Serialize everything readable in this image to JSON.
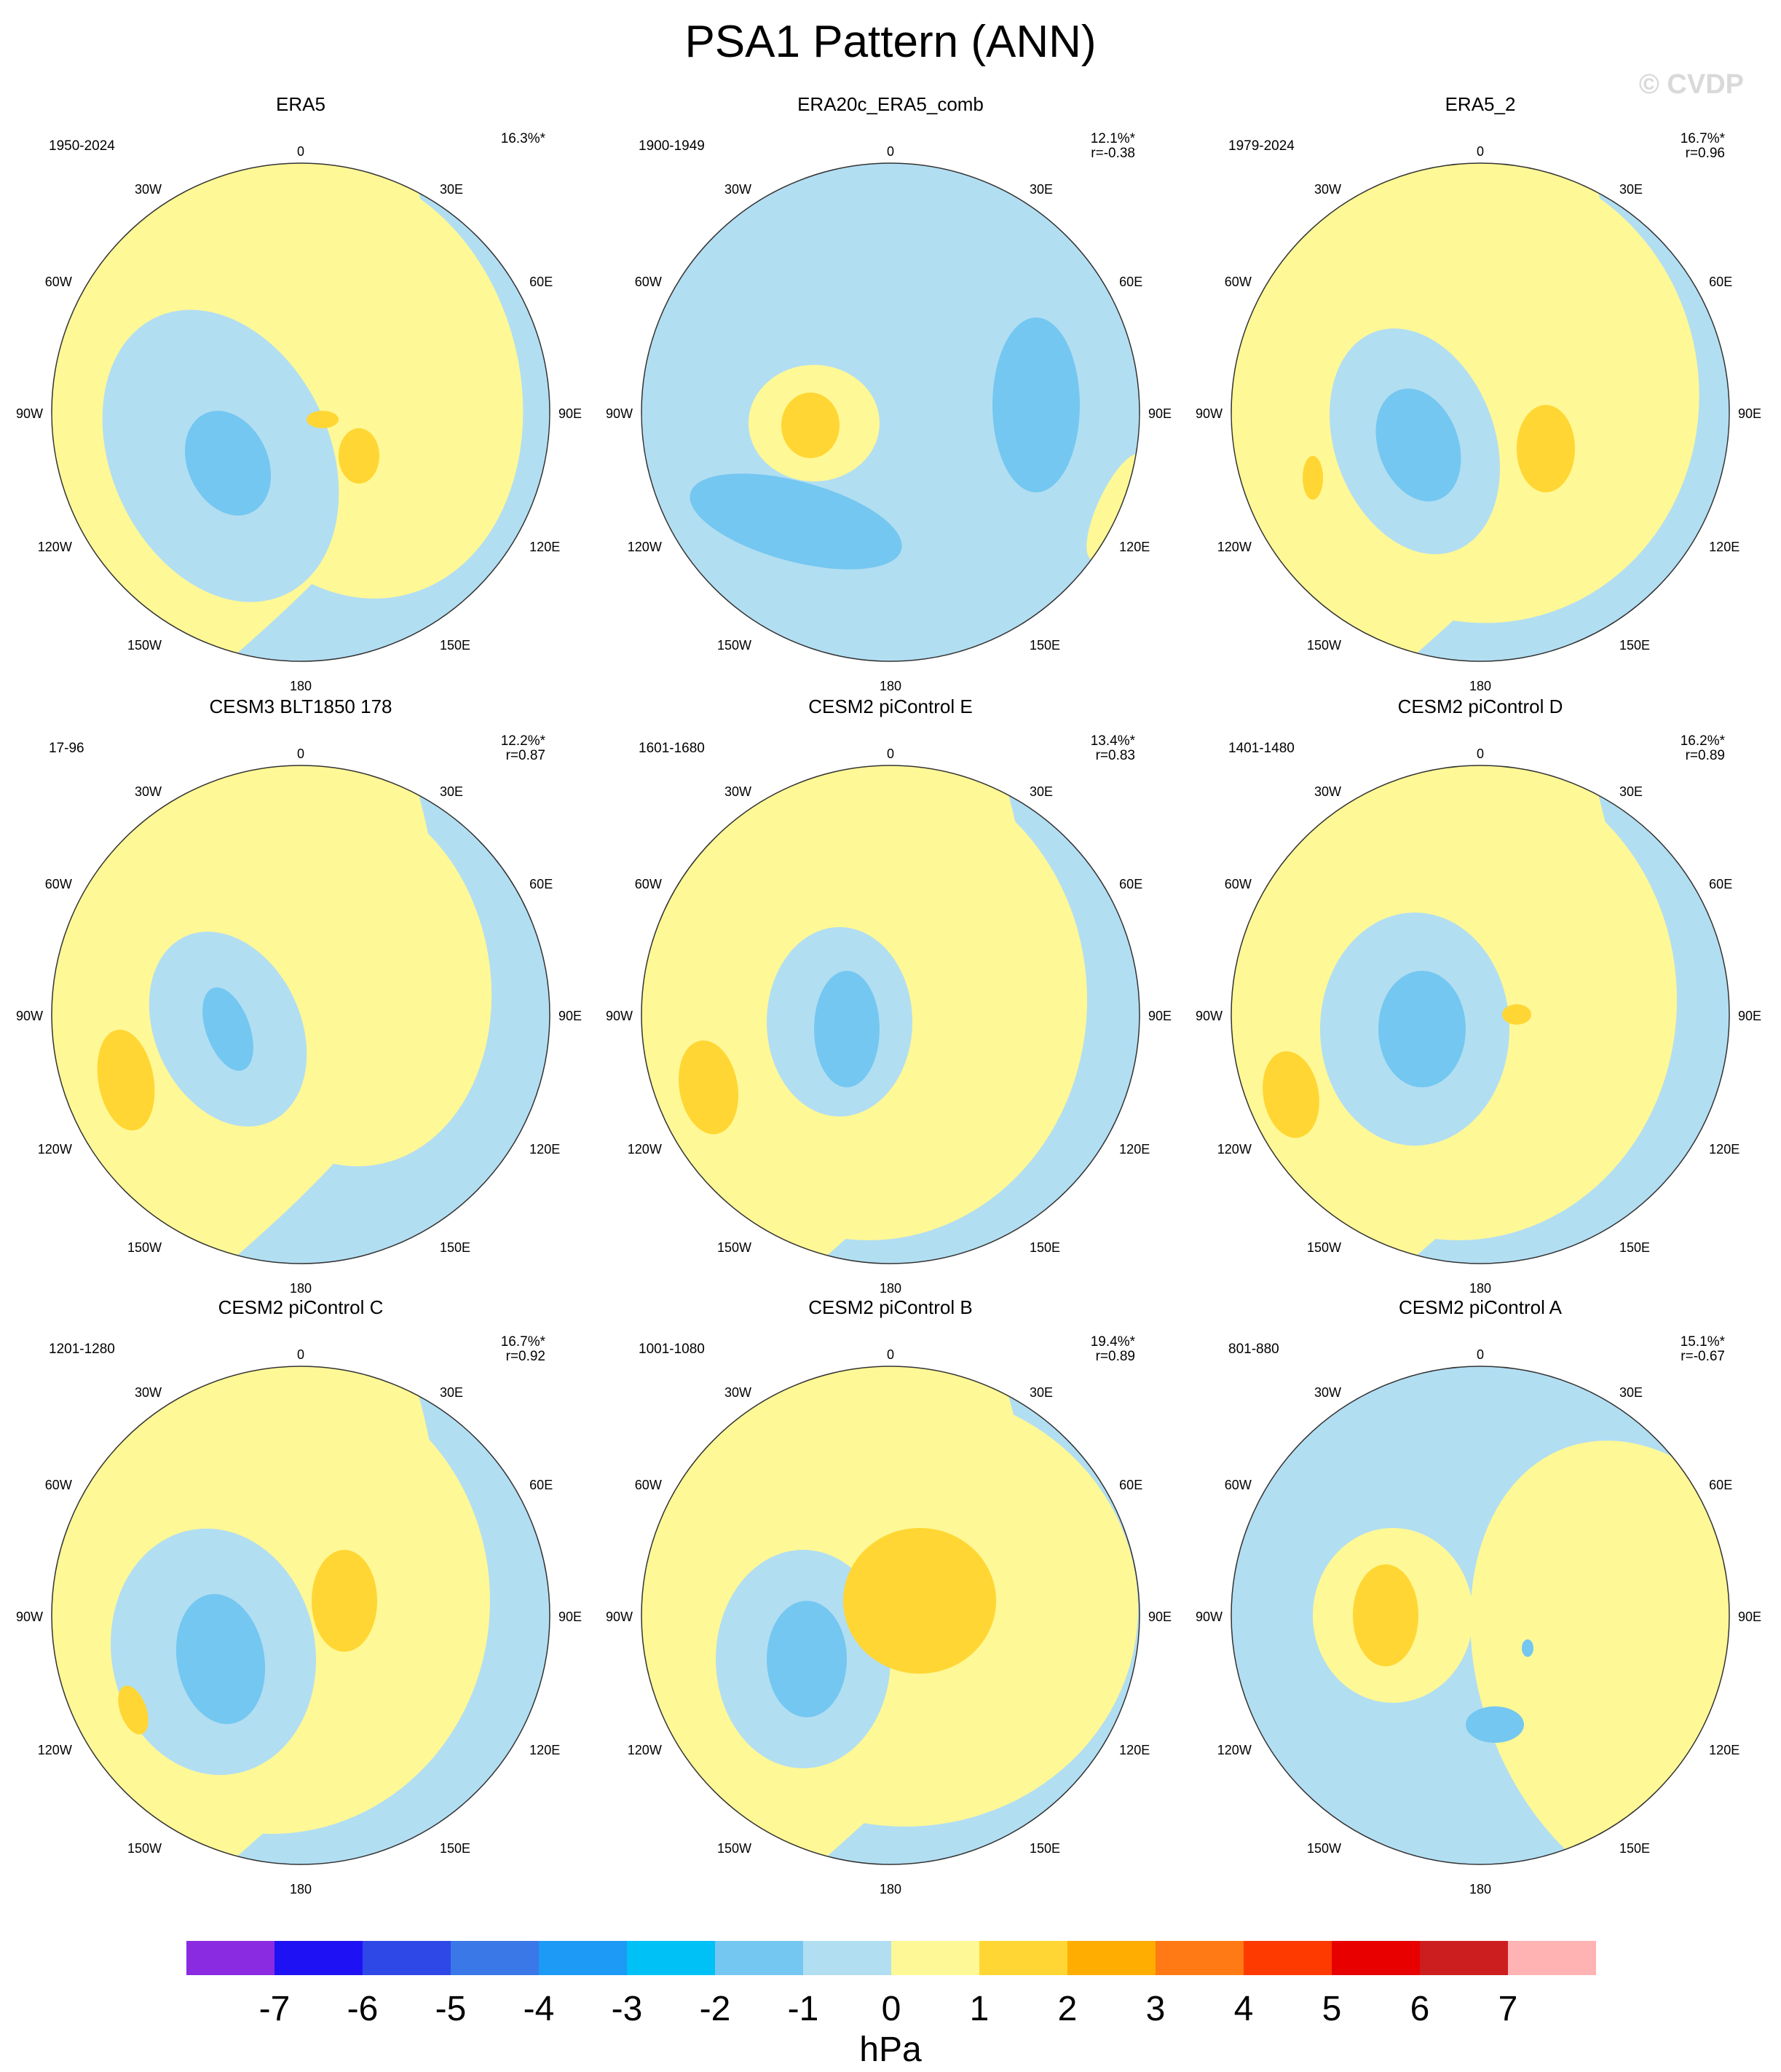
{
  "title": "PSA1 Pattern (ANN)",
  "watermark": "© CVDP",
  "colorbar": {
    "unit": "hPa",
    "tick_labels": [
      "-7",
      "-6",
      "-5",
      "-4",
      "-3",
      "-2",
      "-1",
      "0",
      "1",
      "2",
      "3",
      "4",
      "5",
      "6",
      "7"
    ],
    "colors": [
      "#8a2be2",
      "#1e12f5",
      "#2e48e8",
      "#3a78e8",
      "#1c9af5",
      "#00c1f5",
      "#74c7f0",
      "#b2def2",
      "#fff896",
      "#ffd633",
      "#ffad00",
      "#ff7a14",
      "#ff3a00",
      "#e80000",
      "#cc1e1e",
      "#ffb3b3"
    ]
  },
  "map_labels": {
    "top": "0",
    "tr1": "30E",
    "tr2": "60E",
    "right": "90E",
    "br2": "120E",
    "br1": "150E",
    "bottom": "180",
    "bl1": "150W",
    "bl2": "120W",
    "left": "90W",
    "tl2": "60W",
    "tl1": "30W"
  },
  "panels": [
    {
      "name": "ERA5",
      "period": "1950-2024",
      "pct": "16.3%*",
      "r": "",
      "base": "pos"
    },
    {
      "name": "ERA20c_ERA5_comb",
      "period": "1900-1949",
      "pct": "12.1%*",
      "r": "r=-0.38",
      "base": "neg"
    },
    {
      "name": "ERA5_2",
      "period": "1979-2024",
      "pct": "16.7%*",
      "r": "r=0.96",
      "base": "pos"
    },
    {
      "name": "CESM3 BLT1850 178",
      "period": "17-96",
      "pct": "12.2%*",
      "r": "r=0.87",
      "base": "pos"
    },
    {
      "name": "CESM2 piControl E",
      "period": "1601-1680",
      "pct": "13.4%*",
      "r": "r=0.83",
      "base": "pos"
    },
    {
      "name": "CESM2 piControl D",
      "period": "1401-1480",
      "pct": "16.2%*",
      "r": "r=0.89",
      "base": "pos"
    },
    {
      "name": "CESM2 piControl C",
      "period": "1201-1280",
      "pct": "16.7%*",
      "r": "r=0.92",
      "base": "pos"
    },
    {
      "name": "CESM2 piControl B",
      "period": "1001-1080",
      "pct": "19.4%*",
      "r": "r=0.89",
      "base": "pos"
    },
    {
      "name": "CESM2 piControl A",
      "period": "801-880",
      "pct": "15.1%*",
      "r": "r=-0.67",
      "base": "neg"
    }
  ],
  "chart_data": {
    "type": "heatmap",
    "title": "PSA1 Pattern (ANN)",
    "projection": "south polar stereographic",
    "units": "hPa",
    "contour_levels": [
      -7,
      -6,
      -5,
      -4,
      -3,
      -2,
      -1,
      0,
      1,
      2,
      3,
      4,
      5,
      6,
      7
    ],
    "panels": [
      "ERA5",
      "ERA20c_ERA5_comb",
      "ERA5_2",
      "CESM3 BLT1850 178",
      "CESM2 piControl E",
      "CESM2 piControl D",
      "CESM2 piControl C",
      "CESM2 piControl B",
      "CESM2 piControl A"
    ],
    "explained_variance_pct": [
      16.3,
      12.1,
      16.7,
      12.2,
      13.4,
      16.2,
      16.7,
      19.4,
      15.1
    ],
    "pattern_correlation_with_ERA5": [
      null,
      -0.38,
      0.96,
      0.87,
      0.83,
      0.89,
      0.92,
      0.89,
      -0.67
    ]
  }
}
